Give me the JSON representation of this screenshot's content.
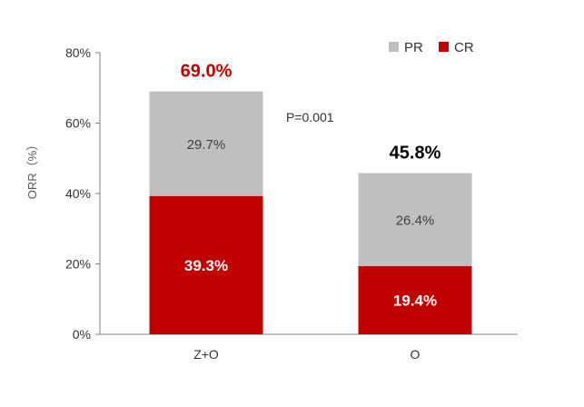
{
  "chart_data": {
    "type": "bar",
    "stacked": true,
    "categories": [
      "Z+O",
      "O"
    ],
    "series": [
      {
        "name": "CR",
        "values": [
          39.3,
          19.4
        ],
        "labels": [
          "39.3%",
          "19.4%"
        ],
        "color": "#c00000"
      },
      {
        "name": "PR",
        "values": [
          29.7,
          26.4
        ],
        "labels": [
          "29.7%",
          "26.4%"
        ],
        "color": "#bfbfbf"
      }
    ],
    "totals": [
      69.0,
      45.8
    ],
    "total_labels": [
      "69.0%",
      "45.8%"
    ],
    "total_label_colors": [
      "#c00000",
      "#000000"
    ],
    "ylabel": "ORR（%）",
    "ylim": [
      0,
      80
    ],
    "yticks": [
      0,
      20,
      40,
      60,
      80
    ],
    "ytick_labels": [
      "0%",
      "20%",
      "40%",
      "60%",
      "80%"
    ],
    "annotation": "P=0.001",
    "legend": {
      "placement": "top-right",
      "items": [
        {
          "name": "PR",
          "color": "#bfbfbf"
        },
        {
          "name": "CR",
          "color": "#c00000"
        }
      ]
    },
    "grid": false
  }
}
